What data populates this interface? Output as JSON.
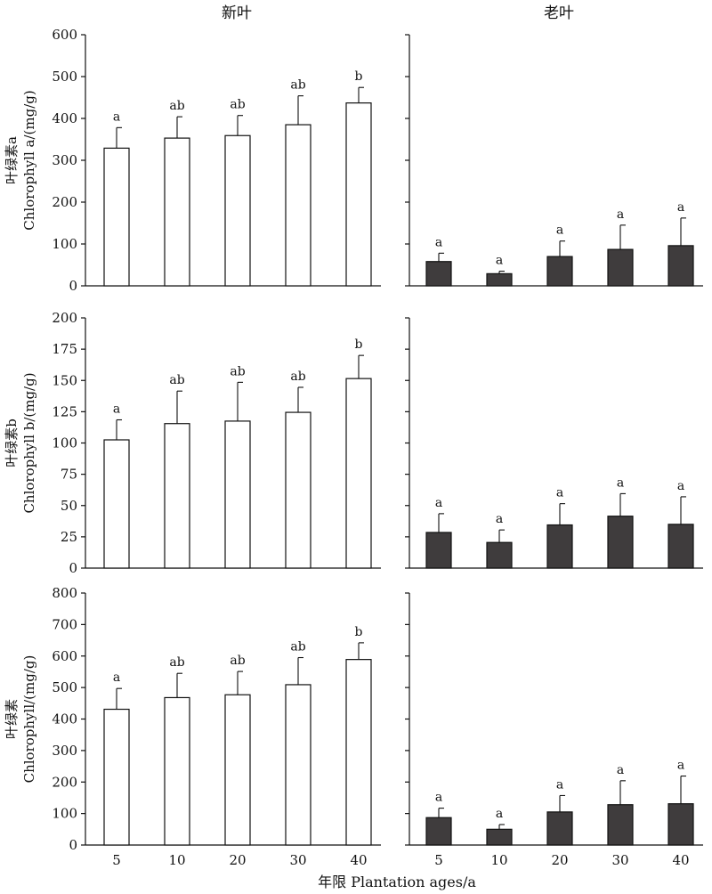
{
  "column_titles": [
    "新叶",
    "老叶"
  ],
  "xlabel": "年限  Plantation ages/a",
  "chart_data": [
    {
      "type": "bar",
      "panel": "chlorophyll-a-new",
      "categories": [
        "5",
        "10",
        "20",
        "30",
        "40"
      ],
      "values": [
        329,
        353,
        359,
        385,
        437
      ],
      "errors": [
        49,
        51,
        48,
        69,
        37
      ],
      "significance": [
        "a",
        "ab",
        "ab",
        "ab",
        "b"
      ],
      "ylabel_cn": "叶绿素a",
      "ylabel_en": "Chlorophyll a/(mg/g)",
      "ylim": [
        0,
        600
      ],
      "yticks": [
        0,
        100,
        200,
        300,
        400,
        500,
        600
      ],
      "bar_color": "#ffffff"
    },
    {
      "type": "bar",
      "panel": "chlorophyll-a-old",
      "categories": [
        "5",
        "10",
        "20",
        "30",
        "40"
      ],
      "values": [
        58,
        29,
        70,
        87,
        96
      ],
      "errors": [
        20,
        6,
        37,
        58,
        66
      ],
      "significance": [
        "a",
        "a",
        "a",
        "a",
        "a"
      ],
      "ylim": [
        0,
        600
      ],
      "yticks": [
        0,
        100,
        200,
        300,
        400,
        500,
        600
      ],
      "bar_color": "#3f3c3d"
    },
    {
      "type": "bar",
      "panel": "chlorophyll-b-new",
      "categories": [
        "5",
        "10",
        "20",
        "30",
        "40"
      ],
      "values": [
        102.5,
        115.5,
        117.5,
        124.5,
        151.5
      ],
      "errors": [
        16,
        26,
        31,
        20,
        18.5
      ],
      "significance": [
        "a",
        "ab",
        "ab",
        "ab",
        "b"
      ],
      "ylabel_cn": "叶绿素b",
      "ylabel_en": "Chlorophyll b/(mg/g)",
      "ylim": [
        0,
        200
      ],
      "yticks": [
        0,
        25,
        50,
        75,
        100,
        125,
        150,
        175,
        200
      ],
      "bar_color": "#ffffff"
    },
    {
      "type": "bar",
      "panel": "chlorophyll-b-old",
      "categories": [
        "5",
        "10",
        "20",
        "30",
        "40"
      ],
      "values": [
        28.5,
        20.5,
        34.5,
        41.5,
        35
      ],
      "errors": [
        15,
        10,
        17,
        18,
        22
      ],
      "significance": [
        "a",
        "a",
        "a",
        "a",
        "a"
      ],
      "ylim": [
        0,
        200
      ],
      "yticks": [
        0,
        25,
        50,
        75,
        100,
        125,
        150,
        175,
        200
      ],
      "bar_color": "#3f3c3d"
    },
    {
      "type": "bar",
      "panel": "chlorophyll-total-new",
      "categories": [
        "5",
        "10",
        "20",
        "30",
        "40"
      ],
      "values": [
        431,
        468,
        477,
        509,
        589
      ],
      "errors": [
        66,
        77,
        74,
        86,
        53
      ],
      "significance": [
        "a",
        "ab",
        "ab",
        "ab",
        "b"
      ],
      "ylabel_cn": "叶绿素",
      "ylabel_en": "Chlorophyll/(mg/g)",
      "ylim": [
        0,
        800
      ],
      "yticks": [
        0,
        100,
        200,
        300,
        400,
        500,
        600,
        700,
        800
      ],
      "bar_color": "#ffffff"
    },
    {
      "type": "bar",
      "panel": "chlorophyll-total-old",
      "categories": [
        "5",
        "10",
        "20",
        "30",
        "40"
      ],
      "values": [
        87,
        50,
        105,
        128,
        131
      ],
      "errors": [
        30,
        15,
        52,
        76,
        88
      ],
      "significance": [
        "a",
        "a",
        "a",
        "a",
        "a"
      ],
      "ylim": [
        0,
        800
      ],
      "yticks": [
        0,
        100,
        200,
        300,
        400,
        500,
        600,
        700,
        800
      ],
      "bar_color": "#3f3c3d"
    }
  ]
}
